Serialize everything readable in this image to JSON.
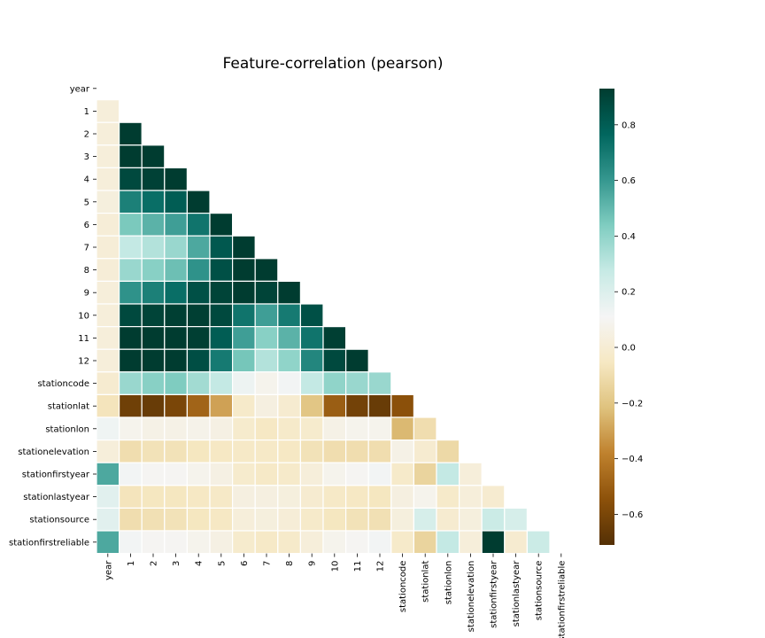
{
  "chart_data": {
    "type": "heatmap",
    "title": "Feature-correlation (pearson)",
    "mask": "upper-triangle-including-diagonal",
    "labels": [
      "year",
      "1",
      "2",
      "3",
      "4",
      "5",
      "6",
      "7",
      "8",
      "9",
      "10",
      "11",
      "12",
      "stationcode",
      "stationlat",
      "stationlon",
      "stationelevation",
      "stationfirstyear",
      "stationlastyear",
      "stationsource",
      "stationfirstreliable"
    ],
    "matrix": [
      [],
      [
        0.02
      ],
      [
        0.02,
        0.93
      ],
      [
        0.02,
        0.93,
        0.93
      ],
      [
        0.02,
        0.88,
        0.91,
        0.93
      ],
      [
        0.03,
        0.68,
        0.74,
        0.8,
        0.93
      ],
      [
        0.01,
        0.45,
        0.52,
        0.58,
        0.72,
        0.93
      ],
      [
        0.01,
        0.28,
        0.32,
        0.38,
        0.55,
        0.82,
        0.93
      ],
      [
        0.01,
        0.38,
        0.42,
        0.48,
        0.62,
        0.85,
        0.93,
        0.93
      ],
      [
        0.02,
        0.62,
        0.68,
        0.74,
        0.85,
        0.9,
        0.93,
        0.9,
        0.93
      ],
      [
        0.02,
        0.88,
        0.9,
        0.92,
        0.92,
        0.88,
        0.72,
        0.58,
        0.7,
        0.85
      ],
      [
        0.02,
        0.93,
        0.93,
        0.93,
        0.92,
        0.8,
        0.58,
        0.42,
        0.52,
        0.72,
        0.92
      ],
      [
        0.02,
        0.93,
        0.93,
        0.93,
        0.86,
        0.7,
        0.46,
        0.32,
        0.4,
        0.66,
        0.88,
        0.93
      ],
      [
        -0.01,
        0.38,
        0.42,
        0.44,
        0.36,
        0.28,
        0.14,
        0.08,
        0.12,
        0.28,
        0.4,
        0.38,
        0.38
      ],
      [
        -0.07,
        -0.63,
        -0.65,
        -0.6,
        -0.48,
        -0.3,
        -0.03,
        0.04,
        -0.01,
        -0.2,
        -0.5,
        -0.62,
        -0.65,
        -0.55
      ],
      [
        0.13,
        0.08,
        0.06,
        0.06,
        0.07,
        0.05,
        -0.02,
        -0.05,
        -0.03,
        -0.02,
        0.06,
        0.08,
        0.08,
        -0.24,
        -0.1
      ],
      [
        0.02,
        -0.1,
        -0.08,
        -0.08,
        -0.06,
        -0.05,
        -0.04,
        -0.04,
        -0.05,
        -0.08,
        -0.1,
        -0.1,
        -0.1,
        0.06,
        -0.01,
        -0.12
      ],
      [
        0.55,
        0.12,
        0.1,
        0.1,
        0.08,
        0.05,
        -0.02,
        -0.04,
        -0.03,
        0.02,
        0.08,
        0.1,
        0.12,
        -0.03,
        -0.14,
        0.28,
        0.02
      ],
      [
        0.18,
        -0.07,
        -0.06,
        -0.06,
        -0.05,
        -0.04,
        0.04,
        0.04,
        0.03,
        -0.01,
        -0.04,
        -0.05,
        -0.06,
        0.04,
        0.08,
        -0.03,
        0.02,
        -0.01
      ],
      [
        0.18,
        -0.1,
        -0.09,
        -0.08,
        -0.06,
        -0.05,
        0.02,
        0.03,
        0.01,
        -0.03,
        -0.06,
        -0.08,
        -0.09,
        0.03,
        0.22,
        -0.01,
        0.03,
        0.26,
        0.22
      ],
      [
        0.55,
        0.12,
        0.1,
        0.1,
        0.08,
        0.05,
        -0.02,
        -0.04,
        -0.03,
        0.02,
        0.08,
        0.1,
        0.12,
        -0.03,
        -0.14,
        0.28,
        0.02,
        0.93,
        -0.01,
        0.26
      ]
    ],
    "vmin": -0.71,
    "vmax": 0.93,
    "colormap": "BrBG",
    "colorbar_ticks": [
      0.8,
      0.6,
      0.4,
      0.2,
      0.0,
      -0.2,
      -0.4,
      -0.6
    ],
    "colorbar_tick_labels": [
      "0.8",
      "0.6",
      "0.4",
      "0.2",
      "0.0",
      "−0.2",
      "−0.4",
      "−0.6"
    ]
  }
}
